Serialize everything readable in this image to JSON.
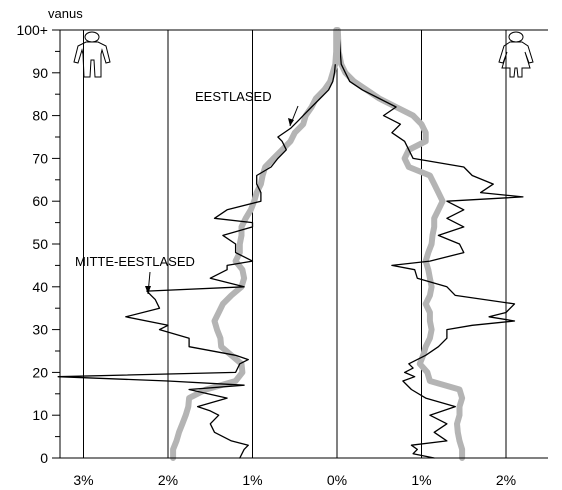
{
  "chart_data": {
    "type": "line",
    "title": "",
    "ylabel": "vanus",
    "xlabel": "",
    "x_ticks": [
      "3%",
      "2%",
      "1%",
      "0%",
      "1%",
      "2%"
    ],
    "y_ticks": [
      "0",
      "10",
      "20",
      "30",
      "40",
      "50",
      "60",
      "70",
      "80",
      "90",
      "100+"
    ],
    "xlim": [
      -3.3,
      2.5
    ],
    "ylim": [
      0,
      100
    ],
    "grid": "vertical",
    "left_side": "males (negative values)",
    "right_side": "females (positive values)",
    "annotations": [
      {
        "text": "EESTLASED",
        "series": "Eestlased"
      },
      {
        "text": "MITTE-EESTLASED",
        "series": "Mitte-eestlased"
      }
    ],
    "icons": [
      "male-figure-icon",
      "female-figure-icon"
    ],
    "series": [
      {
        "name": "Eestlased",
        "color": "#b4b4b4",
        "style": "thick gray",
        "male": [
          [
            0,
            1.94
          ],
          [
            2,
            1.94
          ],
          [
            4,
            1.9
          ],
          [
            6,
            1.87
          ],
          [
            8,
            1.83
          ],
          [
            10,
            1.79
          ],
          [
            12,
            1.76
          ],
          [
            14,
            1.75
          ],
          [
            16,
            1.55
          ],
          [
            18,
            1.2
          ],
          [
            20,
            1.12
          ],
          [
            22,
            1.13
          ],
          [
            24,
            1.25
          ],
          [
            26,
            1.37
          ],
          [
            28,
            1.38
          ],
          [
            30,
            1.42
          ],
          [
            32,
            1.45
          ],
          [
            34,
            1.4
          ],
          [
            36,
            1.35
          ],
          [
            38,
            1.25
          ],
          [
            40,
            1.13
          ],
          [
            42,
            1.1
          ],
          [
            44,
            1.12
          ],
          [
            46,
            1.2
          ],
          [
            48,
            1.15
          ],
          [
            50,
            1.15
          ],
          [
            52,
            1.13
          ],
          [
            54,
            1.13
          ],
          [
            56,
            1.08
          ],
          [
            58,
            1.02
          ],
          [
            60,
            0.98
          ],
          [
            62,
            0.95
          ],
          [
            64,
            0.9
          ],
          [
            66,
            0.88
          ],
          [
            68,
            0.85
          ],
          [
            70,
            0.75
          ],
          [
            72,
            0.65
          ],
          [
            74,
            0.55
          ],
          [
            76,
            0.5
          ],
          [
            78,
            0.4
          ],
          [
            80,
            0.37
          ],
          [
            82,
            0.3
          ],
          [
            84,
            0.25
          ],
          [
            86,
            0.15
          ],
          [
            88,
            0.08
          ],
          [
            90,
            0.05
          ],
          [
            92,
            0.02
          ],
          [
            95,
            0.01
          ],
          [
            100,
            0.01
          ]
        ],
        "female": [
          [
            0,
            1.48
          ],
          [
            2,
            1.48
          ],
          [
            4,
            1.45
          ],
          [
            6,
            1.43
          ],
          [
            8,
            1.42
          ],
          [
            10,
            1.45
          ],
          [
            12,
            1.45
          ],
          [
            14,
            1.48
          ],
          [
            16,
            1.45
          ],
          [
            18,
            1.1
          ],
          [
            20,
            1.07
          ],
          [
            22,
            0.98
          ],
          [
            24,
            1.02
          ],
          [
            26,
            1.05
          ],
          [
            28,
            1.1
          ],
          [
            30,
            1.12
          ],
          [
            32,
            1.1
          ],
          [
            34,
            1.1
          ],
          [
            36,
            1.05
          ],
          [
            38,
            1.1
          ],
          [
            40,
            1.12
          ],
          [
            42,
            1.1
          ],
          [
            44,
            1.08
          ],
          [
            46,
            1.05
          ],
          [
            48,
            1.08
          ],
          [
            50,
            1.12
          ],
          [
            52,
            1.13
          ],
          [
            54,
            1.15
          ],
          [
            56,
            1.15
          ],
          [
            58,
            1.2
          ],
          [
            60,
            1.25
          ],
          [
            62,
            1.2
          ],
          [
            64,
            1.15
          ],
          [
            66,
            1.1
          ],
          [
            68,
            0.85
          ],
          [
            70,
            0.8
          ],
          [
            72,
            0.85
          ],
          [
            74,
            1.05
          ],
          [
            76,
            1.05
          ],
          [
            78,
            1.0
          ],
          [
            80,
            0.9
          ],
          [
            82,
            0.7
          ],
          [
            84,
            0.5
          ],
          [
            86,
            0.35
          ],
          [
            88,
            0.2
          ],
          [
            90,
            0.1
          ],
          [
            92,
            0.05
          ],
          [
            95,
            0.02
          ],
          [
            100,
            0.01
          ]
        ]
      },
      {
        "name": "Mitte-eestlased",
        "color": "#000000",
        "style": "thin black",
        "male": [
          [
            0,
            1.15
          ],
          [
            2,
            1.1
          ],
          [
            3,
            1.05
          ],
          [
            4,
            1.25
          ],
          [
            6,
            1.45
          ],
          [
            8,
            1.5
          ],
          [
            10,
            1.4
          ],
          [
            11,
            1.5
          ],
          [
            12,
            1.65
          ],
          [
            14,
            1.3
          ],
          [
            16,
            1.75
          ],
          [
            17,
            1.1
          ],
          [
            18,
            2.0
          ],
          [
            19,
            3.3
          ],
          [
            20,
            1.2
          ],
          [
            22,
            1.15
          ],
          [
            23,
            1.05
          ],
          [
            24,
            1.2
          ],
          [
            26,
            1.75
          ],
          [
            28,
            1.75
          ],
          [
            30,
            2.1
          ],
          [
            31,
            2.0
          ],
          [
            33,
            2.5
          ],
          [
            35,
            2.1
          ],
          [
            37,
            2.15
          ],
          [
            38,
            2.2
          ],
          [
            39,
            2.25
          ],
          [
            40,
            1.1
          ],
          [
            42,
            1.5
          ],
          [
            44,
            1.3
          ],
          [
            45,
            1.3
          ],
          [
            46,
            1.0
          ],
          [
            48,
            1.2
          ],
          [
            50,
            1.2
          ],
          [
            52,
            1.35
          ],
          [
            54,
            1.0
          ],
          [
            55,
            1.0
          ],
          [
            56,
            1.45
          ],
          [
            58,
            1.3
          ],
          [
            60,
            0.9
          ],
          [
            62,
            0.9
          ],
          [
            64,
            0.95
          ],
          [
            66,
            0.95
          ],
          [
            68,
            0.78
          ],
          [
            70,
            0.7
          ],
          [
            72,
            0.6
          ],
          [
            74,
            0.65
          ],
          [
            75,
            0.7
          ],
          [
            77,
            0.55
          ],
          [
            79,
            0.45
          ],
          [
            80,
            0.4
          ],
          [
            82,
            0.3
          ],
          [
            84,
            0.2
          ],
          [
            86,
            0.1
          ],
          [
            88,
            0.05
          ],
          [
            90,
            0.03
          ],
          [
            92,
            0.02
          ],
          [
            100,
            0.01
          ]
        ],
        "female": [
          [
            0,
            1.15
          ],
          [
            1,
            0.9
          ],
          [
            2,
            0.95
          ],
          [
            3,
            0.88
          ],
          [
            4,
            1.3
          ],
          [
            6,
            1.15
          ],
          [
            8,
            1.3
          ],
          [
            10,
            1.1
          ],
          [
            12,
            1.4
          ],
          [
            14,
            1.05
          ],
          [
            16,
            0.88
          ],
          [
            18,
            0.78
          ],
          [
            19,
            0.92
          ],
          [
            20,
            0.8
          ],
          [
            21,
            0.9
          ],
          [
            22,
            0.85
          ],
          [
            24,
            1.05
          ],
          [
            26,
            1.2
          ],
          [
            28,
            1.3
          ],
          [
            30,
            1.3
          ],
          [
            31,
            1.6
          ],
          [
            32,
            2.1
          ],
          [
            33,
            1.8
          ],
          [
            34,
            2.0
          ],
          [
            36,
            2.1
          ],
          [
            38,
            1.4
          ],
          [
            40,
            1.3
          ],
          [
            42,
            0.95
          ],
          [
            44,
            0.92
          ],
          [
            45,
            0.65
          ],
          [
            46,
            1.1
          ],
          [
            48,
            1.5
          ],
          [
            50,
            1.45
          ],
          [
            52,
            1.2
          ],
          [
            54,
            1.5
          ],
          [
            56,
            1.3
          ],
          [
            58,
            1.5
          ],
          [
            60,
            1.3
          ],
          [
            61,
            2.2
          ],
          [
            62,
            1.7
          ],
          [
            64,
            1.85
          ],
          [
            66,
            1.6
          ],
          [
            68,
            1.5
          ],
          [
            70,
            0.9
          ],
          [
            72,
            0.85
          ],
          [
            74,
            0.8
          ],
          [
            76,
            0.65
          ],
          [
            78,
            0.75
          ],
          [
            80,
            0.55
          ],
          [
            82,
            0.7
          ],
          [
            84,
            0.5
          ],
          [
            86,
            0.3
          ],
          [
            88,
            0.15
          ],
          [
            90,
            0.1
          ],
          [
            92,
            0.05
          ],
          [
            100,
            0.02
          ]
        ]
      }
    ]
  }
}
